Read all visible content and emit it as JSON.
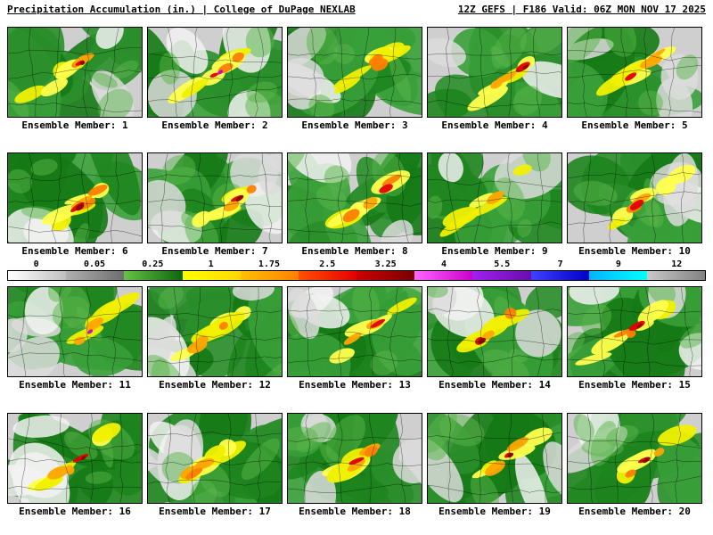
{
  "header": {
    "left": "Precipitation Accumulation (in.) | College of DuPage NEXLAB",
    "right": "12Z GEFS | F186 Valid: 06Z MON NOV 17 2025"
  },
  "panels": [
    {
      "label": "Ensemble Member: 1"
    },
    {
      "label": "Ensemble Member: 2"
    },
    {
      "label": "Ensemble Member: 3"
    },
    {
      "label": "Ensemble Member: 4"
    },
    {
      "label": "Ensemble Member: 5"
    },
    {
      "label": "Ensemble Member: 6"
    },
    {
      "label": "Ensemble Member: 7"
    },
    {
      "label": "Ensemble Member: 8"
    },
    {
      "label": "Ensemble Member: 9"
    },
    {
      "label": "Ensemble Member: 10"
    },
    {
      "label": "Ensemble Member: 11"
    },
    {
      "label": "Ensemble Member: 12"
    },
    {
      "label": "Ensemble Member: 13"
    },
    {
      "label": "Ensemble Member: 14"
    },
    {
      "label": "Ensemble Member: 15"
    },
    {
      "label": "Ensemble Member: 16"
    },
    {
      "label": "Ensemble Member: 17"
    },
    {
      "label": "Ensemble Member: 18"
    },
    {
      "label": "Ensemble Member: 19"
    },
    {
      "label": "Ensemble Member: 20"
    }
  ],
  "colorbar": {
    "units": "in.",
    "segments": [
      {
        "label": "0",
        "from": "#ffffff",
        "to": "#c0c0c0"
      },
      {
        "label": "0.05",
        "from": "#b0b0b0",
        "to": "#6e6e6e"
      },
      {
        "label": "0.25",
        "from": "#66c245",
        "to": "#0e660e"
      },
      {
        "label": "1",
        "from": "#ffff00",
        "to": "#ffd700"
      },
      {
        "label": "1.75",
        "from": "#ffc000",
        "to": "#ff8000"
      },
      {
        "label": "2.5",
        "from": "#ff5000",
        "to": "#e60000"
      },
      {
        "label": "3.25",
        "from": "#cc0000",
        "to": "#7a0000"
      },
      {
        "label": "4",
        "from": "#ff66ff",
        "to": "#cc00cc"
      },
      {
        "label": "5.5",
        "from": "#a020f0",
        "to": "#6a0dad"
      },
      {
        "label": "7",
        "from": "#4040ff",
        "to": "#0000c8"
      },
      {
        "label": "9",
        "from": "#00b4ff",
        "to": "#00ffff"
      },
      {
        "label": "12",
        "from": "#c8c8c8",
        "to": "#828282"
      }
    ]
  },
  "map_palette": {
    "base": "#cfcfcf",
    "greens": [
      "#157a15",
      "#2a8f2a",
      "#1e851e",
      "#39a039"
    ],
    "light_green": "#5ab54a",
    "yellow": [
      "#f0f000",
      "#ffff4d"
    ],
    "orange": [
      "#ffa500",
      "#ff8000"
    ],
    "red": "#e00000",
    "dark_red": "#8b0000",
    "magenta": "#cc00cc",
    "gray": "#dcdcdc",
    "white": "#f2f2f2",
    "border": "#000000"
  }
}
